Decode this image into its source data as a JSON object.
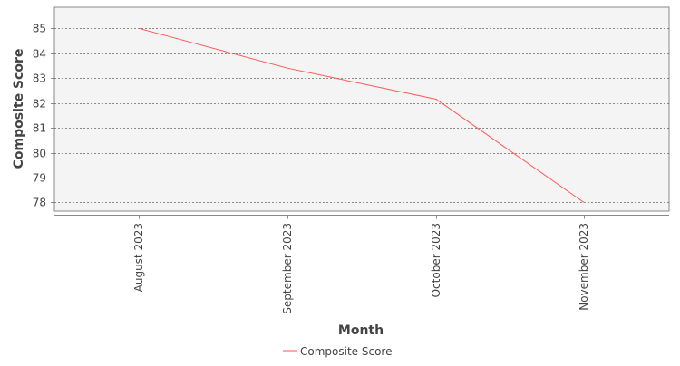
{
  "chart_data": {
    "type": "line",
    "xlabel": "Month",
    "ylabel": "Composite Score",
    "categories": [
      "August 2023",
      "September 2023",
      "October 2023",
      "November 2023"
    ],
    "series": [
      {
        "name": "Composite Score",
        "values": [
          85.0,
          83.4,
          82.15,
          78.0
        ],
        "color": "#ff5555"
      }
    ],
    "ylim": [
      77.65,
      85.85
    ],
    "yticks": [
      "78",
      "79",
      "80",
      "81",
      "82",
      "83",
      "84",
      "85"
    ],
    "grid": true,
    "legend_position": "bottom",
    "plot_background": "#f4f4f4"
  }
}
